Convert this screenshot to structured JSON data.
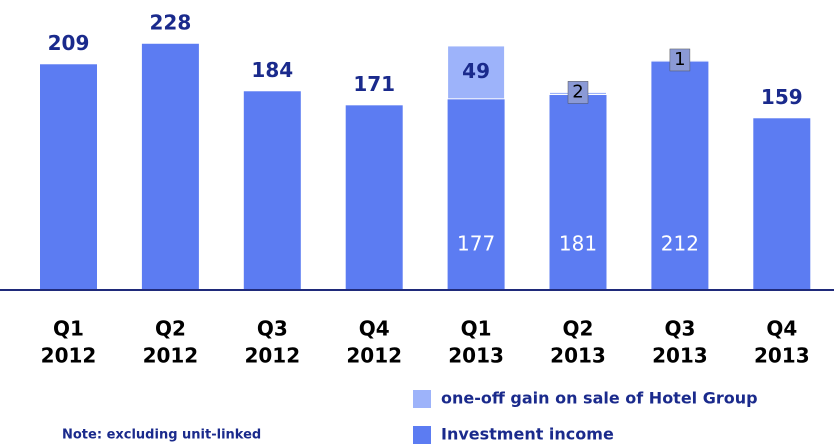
{
  "chart_data": {
    "type": "stacked_bar",
    "categories": [
      [
        "Q1",
        "2012"
      ],
      [
        "Q2",
        "2012"
      ],
      [
        "Q3",
        "2012"
      ],
      [
        "Q4",
        "2012"
      ],
      [
        "Q1",
        "2013"
      ],
      [
        "Q2",
        "2013"
      ],
      [
        "Q3",
        "2013"
      ],
      [
        "Q4",
        "2013"
      ]
    ],
    "series": [
      {
        "name": "Investment income",
        "color": "#5c7cf2",
        "values": [
          209,
          228,
          184,
          171,
          177,
          181,
          212,
          159
        ]
      },
      {
        "name": "one-off gain on sale of Hotel Group",
        "color": "#9db3fa",
        "values": [
          null,
          null,
          null,
          null,
          49,
          2,
          1,
          null
        ]
      }
    ],
    "ylim": [
      0,
      250
    ],
    "note": "Note: excluding unit-linked"
  }
}
